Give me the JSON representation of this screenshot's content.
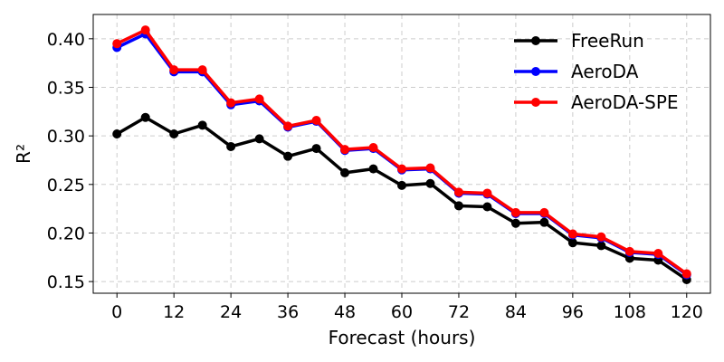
{
  "chart_data": {
    "type": "line",
    "title": "",
    "xlabel": "Forecast (hours)",
    "ylabel": "R²",
    "x": [
      0,
      6,
      12,
      18,
      24,
      30,
      36,
      42,
      48,
      54,
      60,
      66,
      72,
      78,
      84,
      90,
      96,
      102,
      108,
      114,
      120
    ],
    "xticks": [
      "0",
      "12",
      "24",
      "36",
      "48",
      "60",
      "72",
      "84",
      "96",
      "108",
      "120"
    ],
    "yticks": [
      "0.15",
      "0.20",
      "0.25",
      "0.30",
      "0.35",
      "0.40"
    ],
    "xlim": [
      -5,
      125
    ],
    "ylim": [
      0.138,
      0.425
    ],
    "grid": true,
    "legend_position": "top-right",
    "series": [
      {
        "name": "FreeRun",
        "color": "#000000",
        "values": [
          0.302,
          0.319,
          0.302,
          0.311,
          0.289,
          0.297,
          0.279,
          0.287,
          0.262,
          0.266,
          0.249,
          0.251,
          0.228,
          0.227,
          0.21,
          0.211,
          0.19,
          0.187,
          0.174,
          0.172,
          0.152
        ]
      },
      {
        "name": "AeroDA",
        "color": "#0000ff",
        "values": [
          0.391,
          0.405,
          0.366,
          0.366,
          0.332,
          0.336,
          0.309,
          0.315,
          0.285,
          0.287,
          0.265,
          0.266,
          0.241,
          0.24,
          0.22,
          0.22,
          0.198,
          0.195,
          0.18,
          0.178,
          0.157
        ]
      },
      {
        "name": "AeroDA-SPE",
        "color": "#ff0000",
        "values": [
          0.395,
          0.409,
          0.368,
          0.368,
          0.334,
          0.338,
          0.31,
          0.316,
          0.286,
          0.288,
          0.266,
          0.267,
          0.242,
          0.241,
          0.221,
          0.221,
          0.199,
          0.196,
          0.181,
          0.179,
          0.158
        ]
      }
    ]
  }
}
